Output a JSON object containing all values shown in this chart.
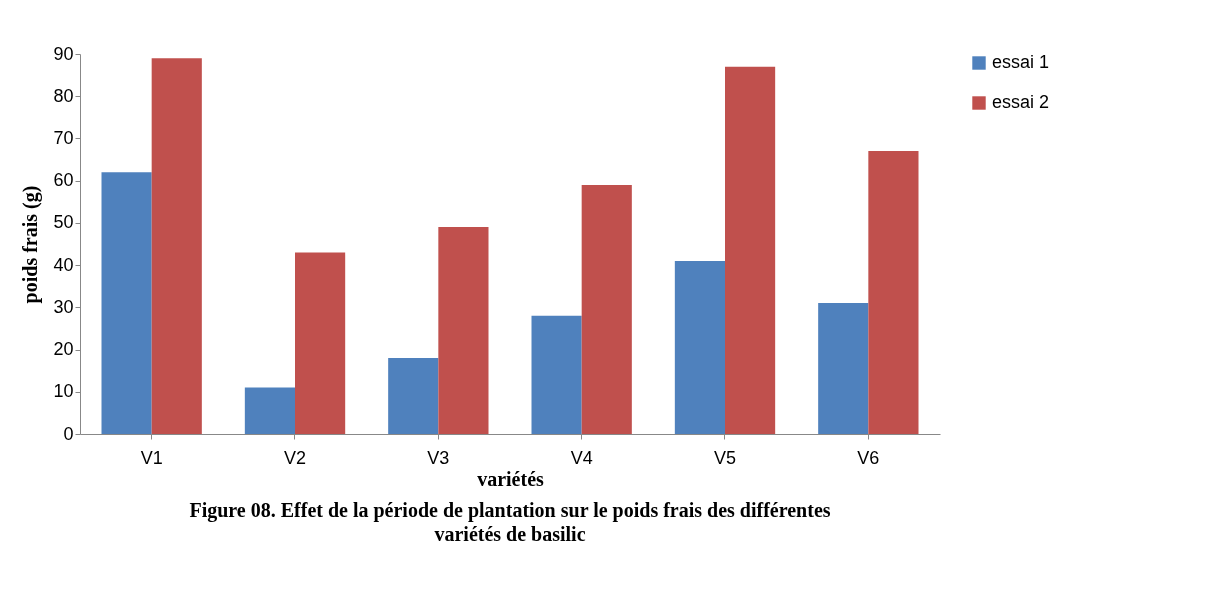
{
  "chart_data": {
    "type": "bar",
    "title": "Figure  08. Effet de la période de plantation sur le poids frais des différentes variétés de basilic",
    "xlabel": "variétés",
    "ylabel": "poids frais (g)",
    "categories": [
      "V1",
      "V2",
      "V3",
      "V4",
      "V5",
      "V6"
    ],
    "series": [
      {
        "name": "essai 1",
        "color": "#4f81bd",
        "values": [
          62,
          11,
          18,
          28,
          41,
          31
        ]
      },
      {
        "name": "essai 2",
        "color": "#c0504d",
        "values": [
          89,
          43,
          49,
          59,
          87,
          67
        ]
      }
    ],
    "ylim": [
      0,
      90
    ],
    "yticks": [
      0,
      10,
      20,
      30,
      40,
      50,
      60,
      70,
      80,
      90
    ],
    "grid": false,
    "legend": "right"
  }
}
